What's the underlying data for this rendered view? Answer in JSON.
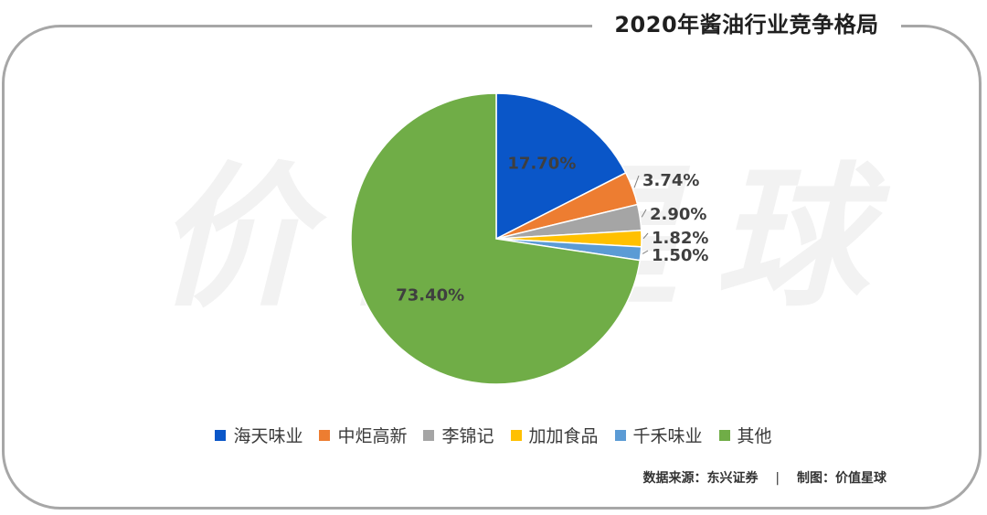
{
  "title": "2020年酱油行业竞争格局",
  "watermark": "价值星球",
  "source": {
    "data_source": "数据来源：东兴证券",
    "separator": "|",
    "made_by": "制图：价值星球"
  },
  "chart_data": {
    "type": "pie",
    "title": "2020年酱油行业竞争格局",
    "categories": [
      "海天味业",
      "中炬高新",
      "李锦记",
      "加加食品",
      "千禾味业",
      "其他"
    ],
    "values": [
      17.7,
      3.74,
      2.9,
      1.82,
      1.5,
      73.4
    ],
    "labels": [
      "17.70%",
      "3.74%",
      "2.90%",
      "1.82%",
      "1.50%",
      "73.40%"
    ],
    "colors": [
      "#0a56c8",
      "#ed7d31",
      "#a5a5a5",
      "#ffc000",
      "#5b9bd5",
      "#70ad47"
    ],
    "start_angle": "12 o'clock",
    "direction": "clockwise",
    "legend_position": "bottom"
  }
}
